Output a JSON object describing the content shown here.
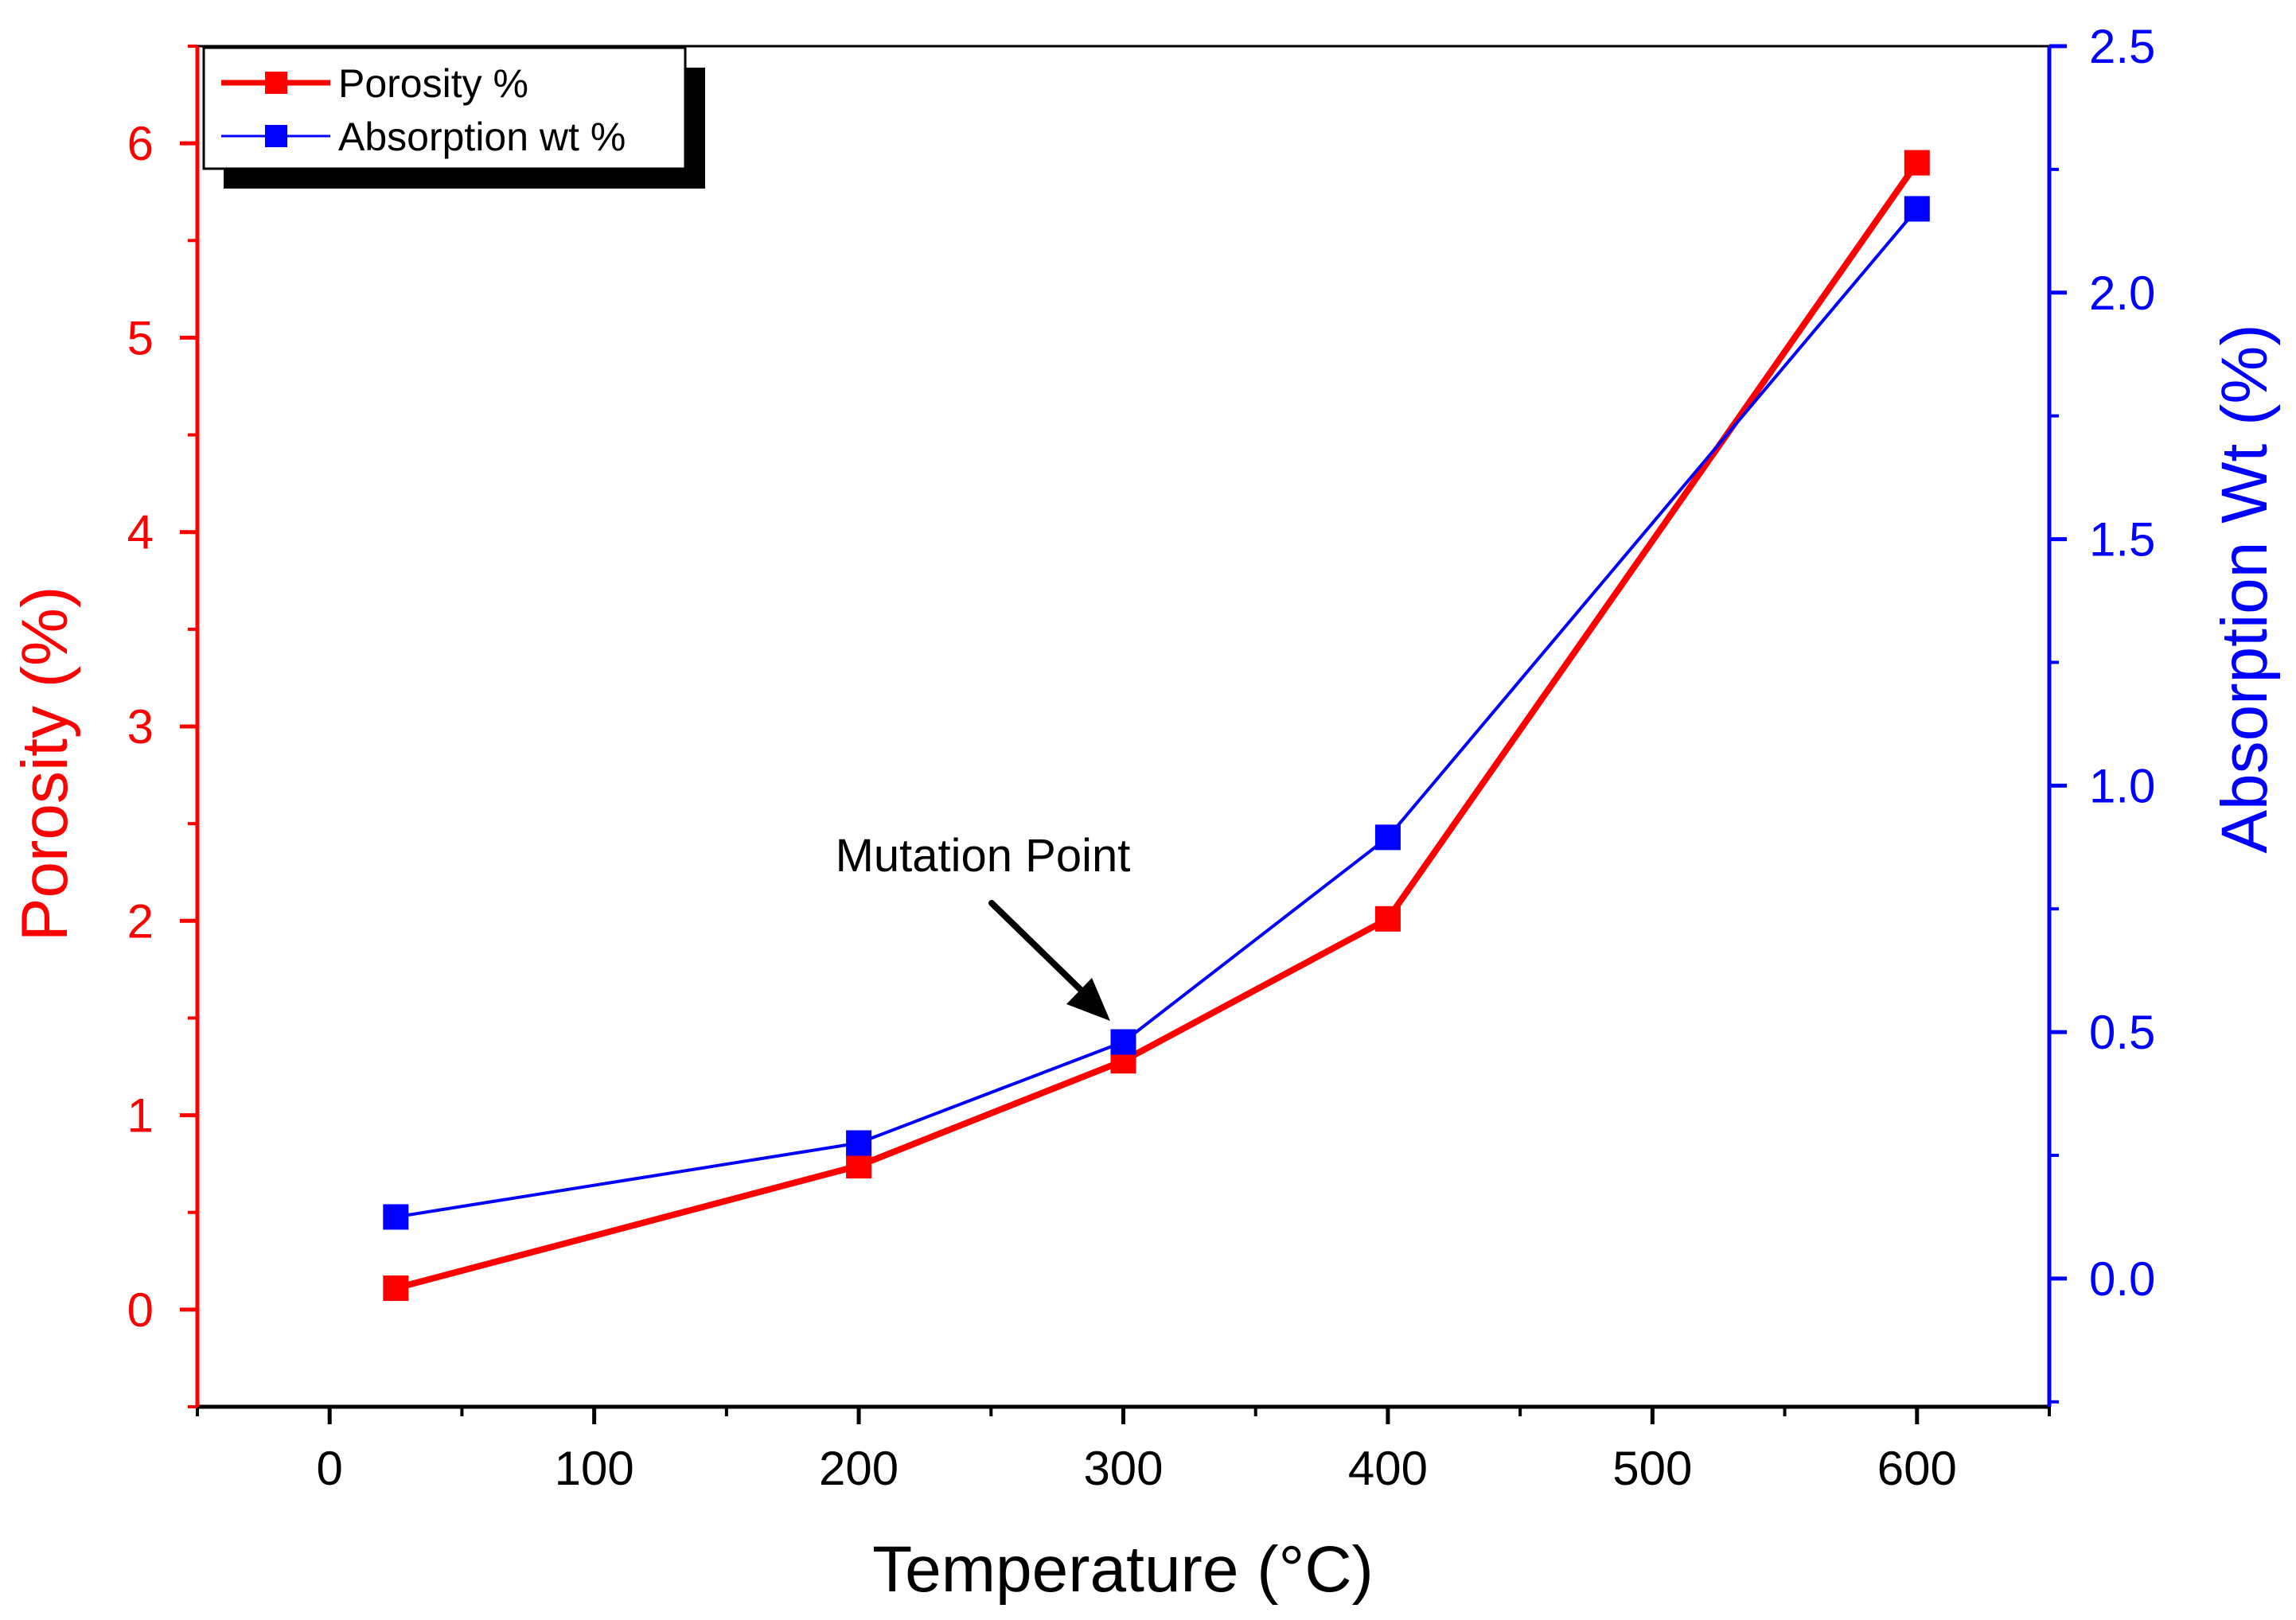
{
  "chart_data": {
    "type": "line",
    "title": "",
    "xlabel": "Temperature (°C)",
    "ylabel_left": "Porosity (%)",
    "ylabel_right": "Absorption Wt (%)",
    "xlim": [
      -50,
      650
    ],
    "ylim_left": [
      -0.5,
      6.5
    ],
    "ylim_right": [
      -0.26,
      2.5
    ],
    "x_ticks": [
      0,
      100,
      200,
      300,
      400,
      500,
      600
    ],
    "x_tick_labels": [
      "0",
      "100",
      "200",
      "300",
      "400",
      "500",
      "600"
    ],
    "y_left_ticks": [
      0,
      1,
      2,
      3,
      4,
      5,
      6
    ],
    "y_left_tick_labels": [
      "0",
      "1",
      "2",
      "3",
      "4",
      "5",
      "6"
    ],
    "y_right_ticks": [
      0.0,
      0.5,
      1.0,
      1.5,
      2.0,
      2.5
    ],
    "y_right_tick_labels": [
      "0.0",
      "0.5",
      "1.0",
      "1.5",
      "2.0",
      "2.5"
    ],
    "grid": false,
    "legend_position": "top-left",
    "series": [
      {
        "name": "Porosity %",
        "axis": "left",
        "color": "#ff0000",
        "x": [
          25,
          200,
          300,
          400,
          600
        ],
        "values": [
          0.11,
          0.74,
          1.28,
          2.01,
          5.9
        ]
      },
      {
        "name": "Absorption wt %",
        "axis": "right",
        "color": "#0000ff",
        "x": [
          25,
          200,
          300,
          400,
          600
        ],
        "values": [
          0.125,
          0.275,
          0.48,
          0.895,
          2.17
        ]
      }
    ],
    "annotations": [
      {
        "text": "Mutation Point",
        "target_x": 300,
        "target_series": "Absorption wt %"
      }
    ]
  },
  "colors": {
    "left_axis": "#ff0000",
    "right_axis": "#0000ff",
    "frame": "#000000"
  }
}
